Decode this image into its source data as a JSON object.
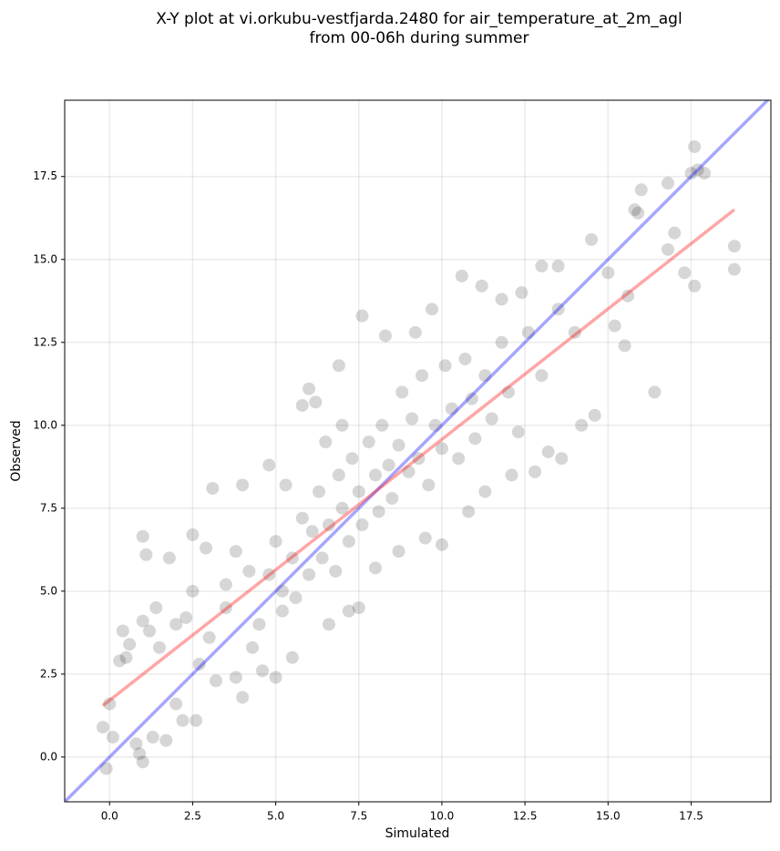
{
  "chart_data": {
    "type": "scatter",
    "title": [
      "X-Y plot at vi.orkubu-vestfjarda.2480 for air_temperature_at_2m_agl",
      "from 00-06h during summer"
    ],
    "xlabel": "Simulated",
    "ylabel": "Observed",
    "xlim": [
      -1.35,
      19.9
    ],
    "ylim": [
      -1.35,
      19.8
    ],
    "xticks": [
      {
        "value": 0,
        "label": "0.0"
      },
      2.5,
      {
        "value": 5,
        "label": "5.0"
      },
      7.5,
      {
        "value": 10,
        "label": "10.0"
      },
      12.5,
      {
        "value": 15,
        "label": "15.0"
      },
      17.5
    ],
    "yticks": [
      {
        "value": 0,
        "label": "0.0"
      },
      2.5,
      {
        "value": 5,
        "label": "5.0"
      },
      7.5,
      {
        "value": 10,
        "label": "10.0"
      },
      12.5,
      {
        "value": 15,
        "label": "15.0"
      },
      17.5
    ],
    "grid": true,
    "points": {
      "color": "#000000",
      "x": [
        -0.1,
        -0.2,
        0.0,
        0.1,
        0.3,
        0.4,
        0.5,
        0.6,
        0.8,
        0.9,
        1.0,
        1.0,
        1.1,
        1.0,
        1.2,
        1.3,
        1.4,
        1.5,
        1.7,
        1.8,
        2.0,
        2.2,
        2.3,
        2.5,
        2.6,
        2.7,
        2.9,
        3.1,
        3.2,
        3.5,
        3.8,
        4.0,
        4.0,
        4.3,
        4.6,
        4.8,
        5.0,
        5.2,
        5.5,
        5.8,
        6.0,
        6.2,
        6.6,
        6.9,
        7.2,
        7.5,
        7.6,
        8.0,
        8.3,
        8.7,
        9.2,
        9.5,
        9.7,
        10.0,
        10.6,
        10.8,
        11.2,
        11.3,
        11.8,
        12.1,
        12.4,
        12.8,
        13.0,
        13.2,
        13.5,
        13.6,
        14.0,
        14.2,
        14.5,
        14.6,
        15.0,
        15.2,
        15.5,
        15.8,
        16.0,
        16.4,
        16.8,
        16.8,
        17.0,
        17.3,
        17.5,
        17.6,
        17.6,
        17.7,
        17.9,
        18.8,
        18.8,
        15.9,
        15.6,
        4.5,
        4.8,
        5.0,
        5.2,
        5.5,
        5.6,
        5.8,
        6.0,
        6.1,
        6.3,
        6.4,
        6.6,
        6.8,
        6.9,
        7.0,
        7.2,
        7.3,
        7.5,
        7.6,
        7.8,
        8.0,
        8.1,
        8.2,
        8.4,
        8.5,
        8.7,
        8.8,
        9.0,
        9.1,
        9.3,
        9.4,
        9.6,
        9.8,
        10.0,
        10.1,
        10.3,
        10.5,
        10.7,
        10.9,
        11.0,
        11.3,
        11.5,
        11.8,
        12.0,
        12.3,
        12.6,
        13.0,
        13.5,
        3.5,
        3.8,
        4.2,
        3.0,
        2.5,
        2.0,
        6.5,
        7.0,
        5.3
      ],
      "y": [
        -0.35,
        0.9,
        1.6,
        0.6,
        2.9,
        3.8,
        3.0,
        3.4,
        0.4,
        0.1,
        -0.15,
        6.65,
        6.1,
        4.1,
        3.8,
        0.6,
        4.5,
        3.3,
        0.5,
        6.0,
        1.6,
        1.1,
        4.2,
        6.7,
        1.1,
        2.8,
        6.3,
        8.1,
        2.3,
        5.2,
        2.4,
        1.8,
        8.2,
        3.3,
        2.6,
        8.8,
        2.4,
        4.4,
        3.0,
        10.6,
        11.1,
        10.7,
        4.0,
        11.8,
        4.4,
        4.5,
        13.3,
        5.7,
        12.7,
        6.2,
        12.8,
        6.6,
        13.5,
        6.4,
        14.5,
        7.4,
        14.2,
        8.0,
        13.8,
        8.5,
        14.0,
        8.6,
        14.8,
        9.2,
        14.8,
        9.0,
        12.8,
        10.0,
        15.6,
        10.3,
        14.6,
        13.0,
        12.4,
        16.5,
        17.1,
        11.0,
        17.3,
        15.3,
        15.8,
        14.6,
        17.6,
        18.4,
        14.2,
        17.7,
        17.6,
        15.4,
        14.7,
        16.4,
        13.9,
        4.0,
        5.5,
        6.5,
        5.0,
        6.0,
        4.8,
        7.2,
        5.5,
        6.8,
        8.0,
        6.0,
        7.0,
        5.6,
        8.5,
        7.5,
        6.5,
        9.0,
        8.0,
        7.0,
        9.5,
        8.5,
        7.4,
        10.0,
        8.8,
        7.8,
        9.4,
        11.0,
        8.6,
        10.2,
        9.0,
        11.5,
        8.2,
        10.0,
        9.3,
        11.8,
        10.5,
        9.0,
        12.0,
        10.8,
        9.6,
        11.5,
        10.2,
        12.5,
        11.0,
        9.8,
        12.8,
        11.5,
        13.5,
        4.5,
        6.2,
        5.6,
        3.6,
        5.0,
        4.0,
        9.5,
        10.0,
        8.2
      ]
    },
    "lines": [
      {
        "color": "#0000ff",
        "x": [
          -1.35,
          19.9
        ],
        "y": [
          -1.35,
          19.9
        ]
      },
      {
        "color": "#ff0000",
        "x": [
          -0.2,
          18.8
        ],
        "y": [
          1.55,
          16.5
        ]
      }
    ]
  }
}
